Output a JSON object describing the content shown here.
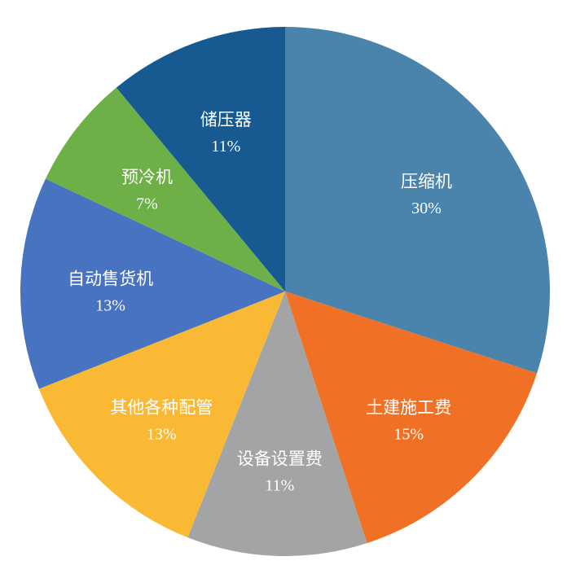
{
  "chart_data": {
    "type": "pie",
    "title": "",
    "start_angle_deg": 0,
    "direction": "clockwise",
    "slices": [
      {
        "label": "压缩机",
        "value": 30,
        "value_label": "30%",
        "color": "#4a84ad"
      },
      {
        "label": "土建施工费",
        "value": 15,
        "value_label": "15%",
        "color": "#f07125"
      },
      {
        "label": "设备设置费",
        "value": 11,
        "value_label": "11%",
        "color": "#a2a4a6"
      },
      {
        "label": "其他各种配管",
        "value": 13,
        "value_label": "13%",
        "color": "#f9b935"
      },
      {
        "label": "自动售货机",
        "value": 13,
        "value_label": "13%",
        "color": "#4873c1"
      },
      {
        "label": "预冷机",
        "value": 7,
        "value_label": "7%",
        "color": "#6db047"
      },
      {
        "label": "储压器",
        "value": 11,
        "value_label": "11%",
        "color": "#175a91"
      }
    ]
  }
}
